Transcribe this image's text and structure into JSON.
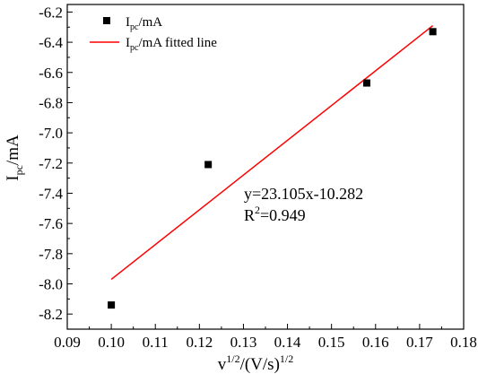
{
  "chart_data": {
    "type": "scatter",
    "title": "",
    "xlabel": {
      "base": "v",
      "sup1": "1/2",
      "mid": "/(V/s)",
      "sup2": "1/2"
    },
    "ylabel": {
      "base": "I",
      "sub": "pc",
      "rest": "/mA"
    },
    "xlim": [
      0.09,
      0.18
    ],
    "ylim": [
      -8.3,
      -6.15
    ],
    "x_ticks": [
      0.09,
      0.1,
      0.11,
      0.12,
      0.13,
      0.14,
      0.15,
      0.16,
      0.17,
      0.18
    ],
    "x_tick_labels": [
      "0.09",
      "0.10",
      "0.11",
      "0.12",
      "0.13",
      "0.14",
      "0.15",
      "0.16",
      "0.17",
      "0.18"
    ],
    "y_ticks": [
      -8.2,
      -8.0,
      -7.8,
      -7.6,
      -7.4,
      -7.2,
      -7.0,
      -6.8,
      -6.6,
      -6.4,
      -6.2
    ],
    "y_tick_labels": [
      "-8.2",
      "-8.0",
      "-7.8",
      "-7.6",
      "-7.4",
      "-7.2",
      "-7.0",
      "-6.8",
      "-6.6",
      "-6.4",
      "-6.2"
    ],
    "grid": false,
    "legend_position": "top-left",
    "series": [
      {
        "name": {
          "base": "I",
          "sub": "pc",
          "rest": "/mA"
        },
        "kind": "scatter",
        "marker": "square",
        "color": "#000000",
        "x": [
          0.1,
          0.122,
          0.158,
          0.173
        ],
        "y": [
          -8.14,
          -7.21,
          -6.67,
          -6.33
        ]
      },
      {
        "name": {
          "base": "I",
          "sub": "pc",
          "rest": "/mA fitted line"
        },
        "kind": "line",
        "color": "#ff0000",
        "slope": 23.105,
        "intercept": -10.282,
        "x": [
          0.1,
          0.173
        ],
        "y": [
          -7.97,
          -6.29
        ]
      }
    ],
    "annotations": {
      "equation": "y=23.105x-10.282",
      "r2": {
        "base": "R",
        "sup": "2",
        "rest": "=0.949"
      }
    }
  }
}
